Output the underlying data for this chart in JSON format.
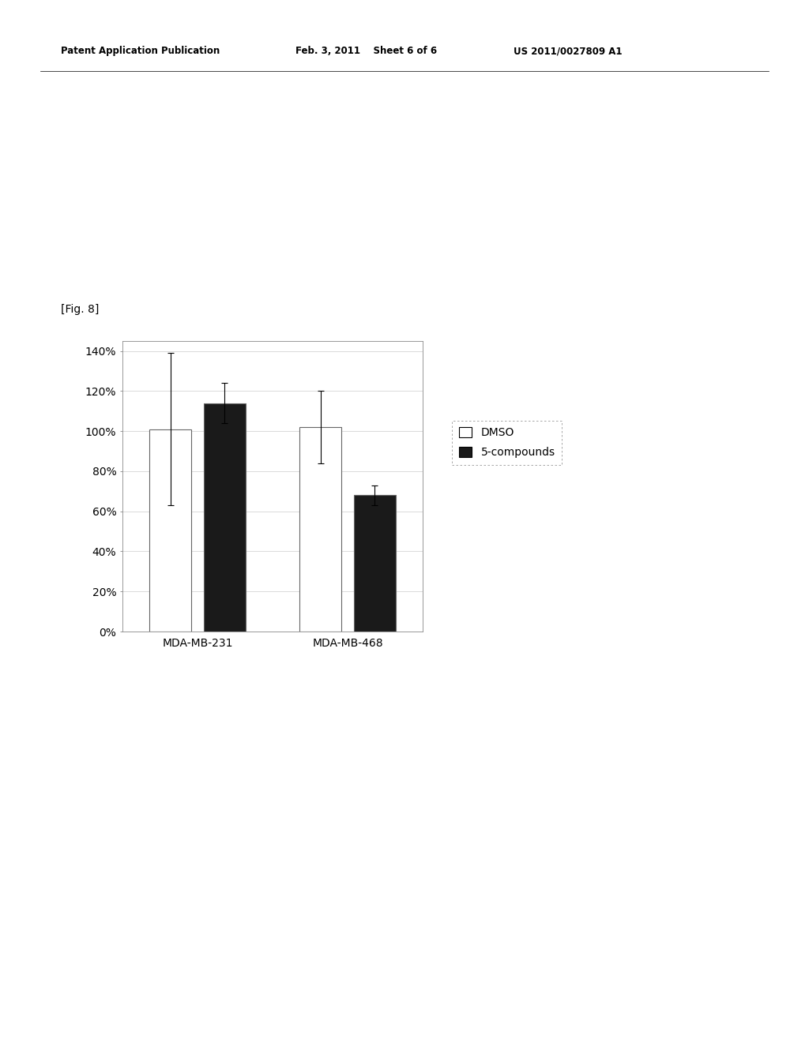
{
  "categories": [
    "MDA-MB-231",
    "MDA-MB-468"
  ],
  "dmso_values": [
    101,
    102
  ],
  "compounds_values": [
    114,
    68
  ],
  "dmso_errors": [
    38,
    18
  ],
  "compounds_errors": [
    10,
    5
  ],
  "dmso_color": "#ffffff",
  "compounds_color": "#1a1a1a",
  "bar_edge_color": "#666666",
  "bar_width": 0.28,
  "ylim": [
    0,
    145
  ],
  "yticks": [
    0,
    20,
    40,
    60,
    80,
    100,
    120,
    140
  ],
  "ytick_labels": [
    "0%",
    "20%",
    "40%",
    "60%",
    "80%",
    "100%",
    "120%",
    "140%"
  ],
  "legend_labels": [
    "DMSO",
    "5-compounds"
  ],
  "fig_label": "[Fig. 8]",
  "header_left": "Patent Application Publication",
  "header_mid": "Feb. 3, 2011    Sheet 6 of 6",
  "header_right": "US 2011/0027809 A1",
  "background_color": "#ffffff",
  "grid_color": "#cccccc",
  "error_cap_size": 3,
  "axis_fontsize": 10,
  "tick_fontsize": 10,
  "legend_fontsize": 10
}
